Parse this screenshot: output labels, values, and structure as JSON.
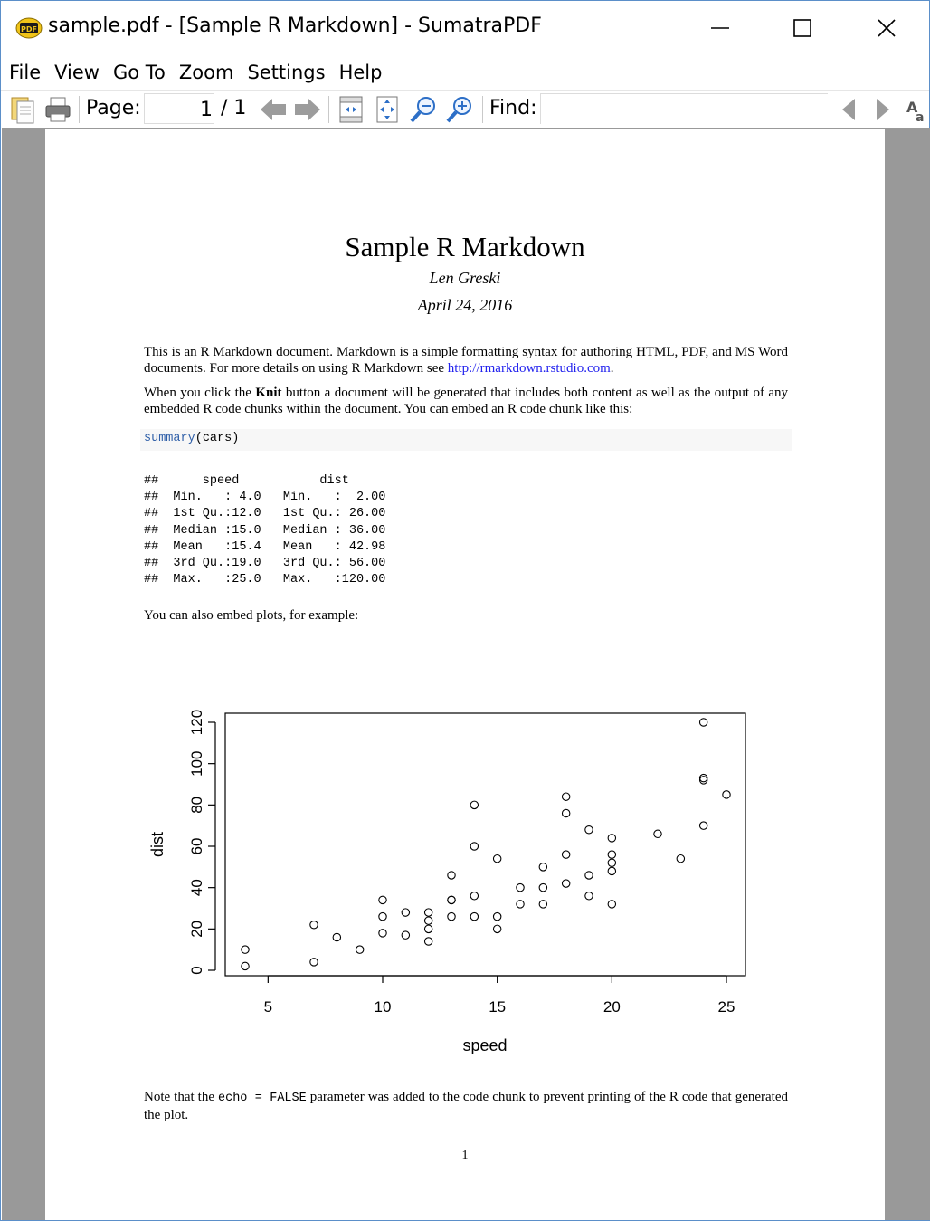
{
  "window": {
    "title": "sample.pdf - [Sample R Markdown] - SumatraPDF",
    "app_icon": "pdf-icon",
    "controls": {
      "minimize": "minimize-icon",
      "maximize": "maximize-icon",
      "close": "close-icon"
    }
  },
  "menu": {
    "items": [
      "File",
      "View",
      "Go To",
      "Zoom",
      "Settings",
      "Help"
    ]
  },
  "toolbar": {
    "page_label": "Page:",
    "page_value": "1",
    "page_total": "/ 1",
    "find_label": "Find:",
    "find_value": "",
    "icons": [
      "open-icon",
      "print-icon",
      "prev-page-icon",
      "next-page-icon",
      "fit-page-icon",
      "fit-width-icon",
      "zoom-out-icon",
      "zoom-in-icon",
      "find-prev-icon",
      "find-next-icon",
      "match-case-icon"
    ]
  },
  "document": {
    "title": "Sample R Markdown",
    "author": "Len Greski",
    "date": "April 24, 2016",
    "para1_text": "This is an R Markdown document. Markdown is a simple formatting syntax for authoring HTML, PDF, and MS Word documents. For more details on using R Markdown see ",
    "para1_link": "http://rmarkdown.rstudio.com",
    "para1_end": ".",
    "para2_start": "When you click the ",
    "para2_bold": "Knit",
    "para2_end": " button a document will be generated that includes both content as well as the output of any embedded R code chunks within the document. You can embed an R code chunk like this:",
    "code_fn": "summary",
    "code_args": "(cars)",
    "output_lines": [
      "##      speed           dist       ",
      "##  Min.   : 4.0   Min.   :  2.00  ",
      "##  1st Qu.:12.0   1st Qu.: 26.00  ",
      "##  Median :15.0   Median : 36.00  ",
      "##  Mean   :15.4   Mean   : 42.98  ",
      "##  3rd Qu.:19.0   3rd Qu.: 56.00  ",
      "##  Max.   :25.0   Max.   :120.00  "
    ],
    "para3": "You can also embed plots, for example:",
    "para4_start": "Note that the ",
    "para4_code": "echo = FALSE",
    "para4_end": " parameter was added to the code chunk to prevent printing of the R code that generated the plot.",
    "page_number": "1"
  },
  "chart_data": {
    "type": "scatter",
    "title": "",
    "xlabel": "speed",
    "ylabel": "dist",
    "xlim": [
      4,
      25
    ],
    "ylim": [
      0,
      120
    ],
    "xticks": [
      5,
      10,
      15,
      20,
      25
    ],
    "yticks": [
      0,
      20,
      40,
      60,
      80,
      100,
      120
    ],
    "grid": false,
    "marker": "open-circle",
    "points": [
      [
        4,
        2
      ],
      [
        4,
        10
      ],
      [
        7,
        4
      ],
      [
        7,
        22
      ],
      [
        8,
        16
      ],
      [
        9,
        10
      ],
      [
        10,
        18
      ],
      [
        10,
        26
      ],
      [
        10,
        34
      ],
      [
        11,
        17
      ],
      [
        11,
        28
      ],
      [
        12,
        14
      ],
      [
        12,
        20
      ],
      [
        12,
        24
      ],
      [
        12,
        28
      ],
      [
        13,
        26
      ],
      [
        13,
        34
      ],
      [
        13,
        34
      ],
      [
        13,
        46
      ],
      [
        14,
        26
      ],
      [
        14,
        36
      ],
      [
        14,
        60
      ],
      [
        14,
        80
      ],
      [
        15,
        20
      ],
      [
        15,
        26
      ],
      [
        15,
        54
      ],
      [
        16,
        32
      ],
      [
        16,
        40
      ],
      [
        17,
        32
      ],
      [
        17,
        40
      ],
      [
        17,
        50
      ],
      [
        18,
        42
      ],
      [
        18,
        56
      ],
      [
        18,
        76
      ],
      [
        18,
        84
      ],
      [
        19,
        36
      ],
      [
        19,
        46
      ],
      [
        19,
        68
      ],
      [
        20,
        32
      ],
      [
        20,
        48
      ],
      [
        20,
        52
      ],
      [
        20,
        56
      ],
      [
        20,
        64
      ],
      [
        22,
        66
      ],
      [
        23,
        54
      ],
      [
        24,
        70
      ],
      [
        24,
        92
      ],
      [
        24,
        93
      ],
      [
        24,
        120
      ],
      [
        25,
        85
      ]
    ]
  }
}
